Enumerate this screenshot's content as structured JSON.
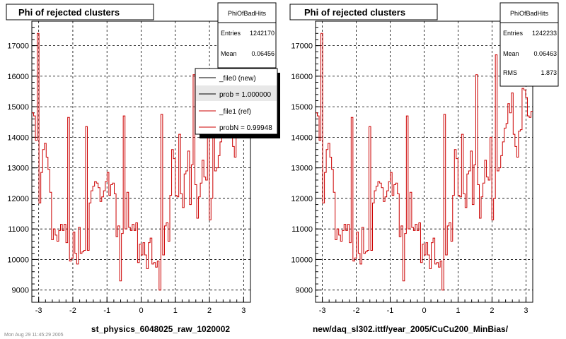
{
  "left": {
    "title": "Phi of rejected clusters",
    "xlabel": "st_physics_6048025_raw_1020002",
    "stats": {
      "name": "PhiOfBadHits",
      "rows": [
        {
          "label": "Entries",
          "value": "1242170"
        },
        {
          "label": "Mean",
          "value": "0.06456"
        }
      ]
    },
    "legend": [
      {
        "label": "_file0 (new)",
        "color": "#000000"
      },
      {
        "label": "prob = 1.000000",
        "color": "#000000"
      },
      {
        "label": "_file1 (ref)",
        "color": "#cc0000"
      },
      {
        "label": "probN = 0.99948",
        "color": "#cc0000"
      }
    ]
  },
  "right": {
    "title": "Phi of rejected clusters",
    "xlabel": "new/daq_sl302.ittf/year_2005/CuCu200_MinBias/",
    "stats": {
      "name": "PhiOfBadHits",
      "rows": [
        {
          "label": "Entries",
          "value": "1242233"
        },
        {
          "label": "Mean",
          "value": "0.06463"
        },
        {
          "label": "RMS",
          "value": "1.873"
        }
      ]
    }
  },
  "footer_text": "Mon Aug 29 11:45:29 2005",
  "colors": {
    "hist": "#cc0000",
    "grid": "#000000"
  },
  "chart_data": [
    {
      "type": "bar",
      "title": "Phi of rejected clusters",
      "xlabel": "st_physics_6048025_raw_1020002",
      "ylabel": "",
      "xlim": [
        -3.2,
        3.2
      ],
      "ylim": [
        8600,
        17800
      ],
      "xticks": [
        -3,
        -2,
        -1,
        0,
        1,
        2,
        3
      ],
      "yticks": [
        9000,
        10000,
        11000,
        12000,
        13000,
        14000,
        15000,
        16000,
        17000
      ],
      "grid": true,
      "series": [
        {
          "name": "_file0 (new)",
          "values": [
            14800,
            14700,
            13900,
            17400,
            11850,
            12850,
            13600,
            13800,
            13350,
            12950,
            12200,
            10650,
            11000,
            10800,
            10600,
            10950,
            11150,
            10950,
            11150,
            10550,
            14650,
            9950,
            10050,
            10900,
            10200,
            9850,
            11050,
            10200,
            10250,
            10300,
            14350,
            10300,
            11850,
            12250,
            12400,
            12550,
            12500,
            12350,
            11900,
            12050,
            12250,
            12550,
            12850,
            12100,
            12450,
            12500,
            12150,
            10750,
            11100,
            9300,
            10850,
            14700,
            11000,
            12200,
            11050,
            10950,
            11150,
            10950,
            11200,
            9900,
            10500,
            10150,
            10550,
            10150,
            9700,
            10550,
            10700,
            9850,
            9900,
            9750,
            9950,
            9000,
            14750,
            10150,
            11100,
            11200,
            10600,
            12100,
            13600,
            13300,
            12100,
            12050,
            14100,
            12150,
            11700,
            12800,
            12900,
            13550,
            11800,
            13100,
            16050,
            12450,
            11350,
            12050,
            12500,
            13250,
            12700,
            12600,
            14000,
            11300,
            12000,
            15450,
            12900,
            13000,
            13400,
            13850,
            14300,
            14450,
            15100,
            14800,
            15450,
            14100,
            13700,
            13350,
            14200,
            14250,
            16600,
            15550,
            15300,
            14700,
            14650,
            14850
          ]
        }
      ]
    },
    {
      "type": "bar",
      "title": "Phi of rejected clusters",
      "xlabel": "new/daq_sl302.ittf/year_2005/CuCu200_MinBias/",
      "ylabel": "",
      "xlim": [
        -3.2,
        3.2
      ],
      "ylim": [
        8600,
        17800
      ],
      "xticks": [
        -3,
        -2,
        -1,
        0,
        1,
        2,
        3
      ],
      "yticks": [
        9000,
        10000,
        11000,
        12000,
        13000,
        14000,
        15000,
        16000,
        17000
      ],
      "grid": true,
      "series": [
        {
          "name": "PhiOfBadHits",
          "values": [
            14800,
            14700,
            13900,
            17400,
            11850,
            12850,
            13600,
            13800,
            13350,
            12950,
            12200,
            10650,
            11000,
            10800,
            10600,
            10950,
            11150,
            10950,
            11150,
            10550,
            14650,
            9950,
            10050,
            10900,
            10200,
            9850,
            11050,
            10200,
            10250,
            10300,
            14350,
            10300,
            11850,
            12250,
            12400,
            12550,
            12500,
            12350,
            11900,
            12050,
            12250,
            12550,
            12850,
            12100,
            12450,
            12500,
            12150,
            10750,
            11100,
            9300,
            10850,
            14700,
            11000,
            12200,
            11050,
            10950,
            11150,
            10950,
            11200,
            9900,
            10500,
            10150,
            10550,
            10150,
            9700,
            10550,
            10700,
            9850,
            9900,
            9750,
            9950,
            9000,
            14750,
            10150,
            11100,
            11200,
            10600,
            12100,
            13600,
            13300,
            12100,
            12050,
            14100,
            12150,
            11700,
            12800,
            12900,
            13550,
            11800,
            13100,
            16050,
            12450,
            11350,
            12050,
            12500,
            13250,
            12700,
            12600,
            14000,
            11300,
            12000,
            16700,
            12900,
            13000,
            13400,
            13850,
            14300,
            14450,
            15100,
            14800,
            15450,
            14100,
            13700,
            13350,
            14200,
            14250,
            15600,
            15550,
            15300,
            14700,
            14650,
            14850
          ]
        }
      ]
    }
  ]
}
